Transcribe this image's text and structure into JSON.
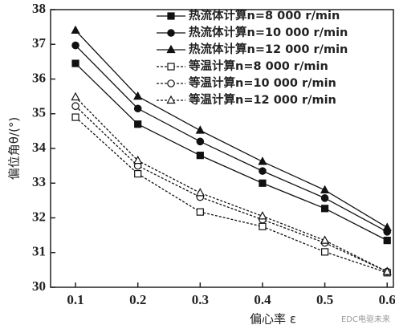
{
  "chart_data": {
    "type": "line",
    "x_label": "偏心率 ε",
    "y_label": "偏位角θ/(°)",
    "watermark": "EDC电驱未来",
    "x": [
      0.1,
      0.2,
      0.3,
      0.4,
      0.5,
      0.6
    ],
    "xlim": [
      0.06,
      0.61
    ],
    "xticks": [
      0.1,
      0.2,
      0.3,
      0.4,
      0.5,
      0.6
    ],
    "ylim": [
      30,
      38
    ],
    "yticks": [
      30,
      31,
      32,
      33,
      34,
      35,
      36,
      37,
      38
    ],
    "legend": "upper right",
    "series": [
      {
        "name": "热流体计算n=8 000 r/min",
        "color": "#111",
        "marker": "square",
        "filled": true,
        "dashed": false,
        "values": [
          36.45,
          34.7,
          33.8,
          33.0,
          32.27,
          31.35
        ]
      },
      {
        "name": "热流体计算n=10 000 r/min",
        "color": "#111",
        "marker": "circle",
        "filled": true,
        "dashed": false,
        "values": [
          36.97,
          35.15,
          34.2,
          33.35,
          32.57,
          31.6
        ]
      },
      {
        "name": "热流体计算n=12 000 r/min",
        "color": "#111",
        "marker": "triangle",
        "filled": true,
        "dashed": false,
        "values": [
          37.4,
          35.5,
          34.52,
          33.62,
          32.8,
          31.72
        ]
      },
      {
        "name": "等温计算n=8 000 r/min",
        "color": "#111",
        "marker": "square",
        "filled": false,
        "dashed": true,
        "values": [
          34.9,
          33.27,
          32.17,
          31.75,
          31.02,
          30.42
        ]
      },
      {
        "name": "等温计算n=10 000 r/min",
        "color": "#111",
        "marker": "circle",
        "filled": false,
        "dashed": true,
        "values": [
          35.22,
          33.5,
          32.6,
          31.95,
          31.28,
          30.45
        ]
      },
      {
        "name": "等温计算n=12 000 r/min",
        "color": "#111",
        "marker": "triangle",
        "filled": false,
        "dashed": true,
        "values": [
          35.48,
          33.65,
          32.72,
          32.05,
          31.35,
          30.45
        ]
      }
    ]
  }
}
